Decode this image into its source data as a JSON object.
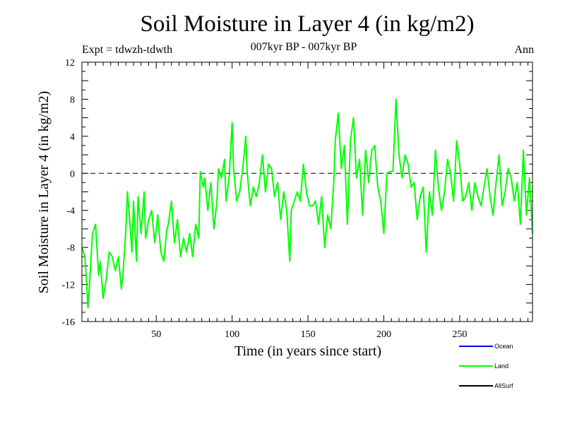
{
  "chart_data": {
    "type": "line",
    "title": "Soil Moisture in Layer 4 (in kg/m2)",
    "subtitle": "007kyr BP - 007kyr BP",
    "expt_label": "Expt = tdwzh-tdwth",
    "period_label": "Ann",
    "xlabel": "Time (in years since start)",
    "ylabel": "Soil Moisture in Layer 4 (in kg/m2)",
    "xlim": [
      1,
      298
    ],
    "ylim": [
      -16,
      12
    ],
    "xticks": [
      50,
      100,
      150,
      200,
      250
    ],
    "yticks": [
      -16,
      -12,
      -8,
      -4,
      0,
      4,
      8,
      12
    ],
    "reference_line": 0,
    "legend": [
      {
        "name": "Ocean",
        "color": "#0000ff"
      },
      {
        "name": "Land",
        "color": "#00ff00"
      },
      {
        "name": "AllSurf",
        "color": "#000000"
      }
    ],
    "series": [
      {
        "name": "Land",
        "color": "#00ff00",
        "x": [
          1,
          3,
          5,
          6,
          8,
          10,
          12,
          13,
          15,
          17,
          19,
          21,
          23,
          25,
          27,
          28,
          30,
          31,
          32,
          34,
          35,
          37,
          38,
          40,
          42,
          43,
          45,
          47,
          49,
          51,
          53,
          55,
          57,
          58,
          60,
          62,
          64,
          66,
          68,
          70,
          72,
          74,
          76,
          78,
          79,
          81,
          82,
          84,
          86,
          88,
          90,
          91,
          93,
          95,
          96,
          98,
          100,
          101,
          103,
          105,
          107,
          109,
          110,
          112,
          114,
          116,
          118,
          120,
          122,
          124,
          126,
          128,
          130,
          132,
          134,
          136,
          138,
          139,
          141,
          143,
          145,
          147,
          149,
          151,
          153,
          155,
          157,
          159,
          161,
          163,
          165,
          167,
          168,
          170,
          172,
          174,
          176,
          178,
          180,
          182,
          184,
          186,
          188,
          190,
          192,
          194,
          196,
          198,
          200,
          202,
          204,
          206,
          208,
          210,
          212,
          214,
          216,
          218,
          220,
          222,
          224,
          226,
          228,
          230,
          232,
          234,
          236,
          238,
          240,
          242,
          244,
          246,
          248,
          250,
          252,
          254,
          256,
          258,
          260,
          262,
          264,
          266,
          268,
          270,
          272,
          274,
          276,
          278,
          280,
          282,
          284,
          286,
          288,
          290,
          292,
          294,
          296,
          298
        ],
        "values": [
          -8.0,
          -9.0,
          -14.5,
          -12.0,
          -6.5,
          -5.5,
          -11.0,
          -9.5,
          -13.5,
          -11.5,
          -8.5,
          -9.0,
          -10.5,
          -9.0,
          -12.5,
          -11.0,
          -6.0,
          -2.0,
          -4.0,
          -8.5,
          -3.0,
          -9.5,
          -2.5,
          -6.5,
          -2.0,
          -7.0,
          -5.0,
          -4.0,
          -7.5,
          -4.5,
          -8.5,
          -9.5,
          -6.0,
          -5.5,
          -3.0,
          -7.5,
          -5.0,
          -9.0,
          -7.0,
          -8.5,
          -6.5,
          -9.0,
          -5.5,
          -7.0,
          0.2,
          -1.5,
          -0.5,
          -4.0,
          -1.0,
          -6.0,
          -3.0,
          0.5,
          -0.5,
          1.5,
          -3.0,
          -0.5,
          5.5,
          0.5,
          -3.0,
          -2.0,
          0.5,
          4.0,
          0.0,
          -3.5,
          -1.5,
          -2.5,
          -1.0,
          2.0,
          -2.0,
          1.0,
          0.5,
          -2.5,
          -1.0,
          -5.0,
          -2.0,
          -4.0,
          -9.5,
          -4.0,
          -3.0,
          -2.0,
          -3.0,
          1.0,
          -2.0,
          -3.5,
          -3.5,
          -3.0,
          -5.5,
          -2.5,
          -8.0,
          -4.5,
          -6.0,
          -1.0,
          3.5,
          6.5,
          0.5,
          3.0,
          -5.5,
          3.5,
          6.0,
          -0.5,
          1.5,
          -4.5,
          2.5,
          -1.0,
          2.5,
          3.0,
          -1.5,
          -3.0,
          -6.5,
          0.0,
          0.2,
          0.2,
          8.0,
          2.0,
          -0.5,
          2.0,
          1.0,
          -1.5,
          -1.0,
          -5.0,
          -2.5,
          -1.5,
          -8.5,
          -2.0,
          -4.5,
          2.5,
          -1.5,
          -4.0,
          -2.0,
          1.5,
          0.0,
          -3.0,
          3.5,
          1.0,
          -3.0,
          -2.5,
          -1.0,
          -4.0,
          -1.0,
          -2.5,
          -3.5,
          -1.5,
          0.5,
          -2.5,
          -4.5,
          -1.0,
          2.0,
          -3.5,
          -2.0,
          0.5,
          -0.5,
          -3.0,
          -1.0,
          -5.5,
          2.5,
          -4.5,
          -0.5,
          -6.5
        ]
      }
    ]
  }
}
